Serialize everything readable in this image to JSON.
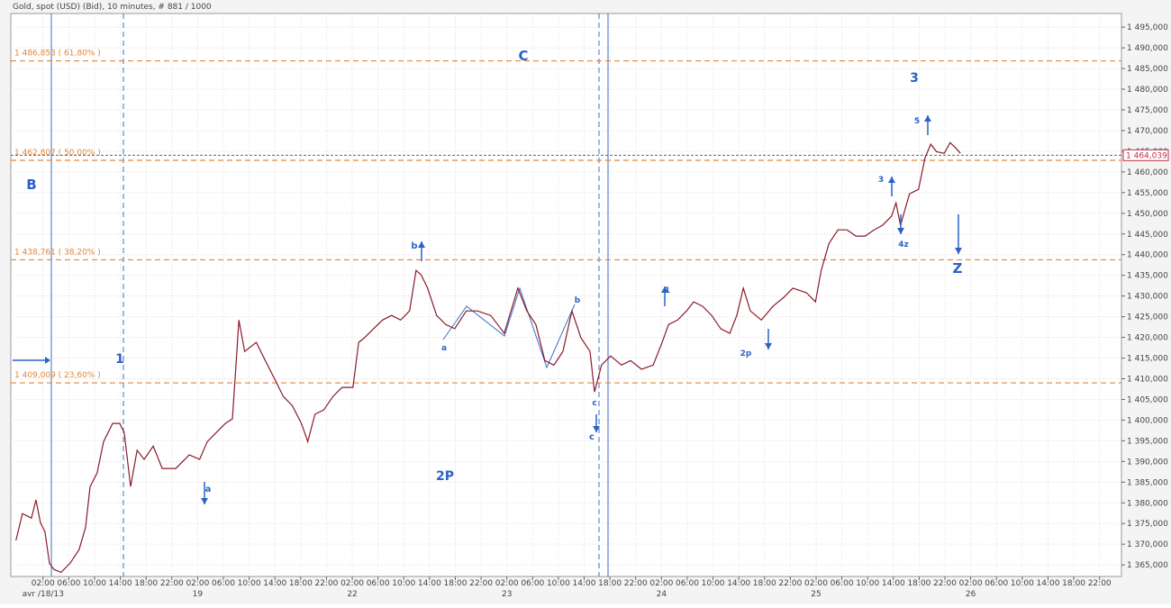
{
  "chart_data": {
    "type": "line",
    "title": "Gold, spot (USD) (Bid), 10 minutes, # 881 / 1000",
    "color": "#8b1a2b",
    "x": [
      -2.2,
      -1.2,
      0.2,
      0.9,
      1.6,
      2.3,
      3.0,
      3.7,
      4.8,
      6.2,
      7.6,
      8.6,
      9.3,
      10.4,
      11.4,
      12.8,
      13.9,
      14.6,
      15.6,
      16.6,
      17.7,
      19.1,
      20.5,
      22.6,
      24.7,
      26.3,
      27.5,
      28.9,
      30.3,
      31.4,
      32.0,
      32.4,
      33.3,
      35.1,
      36.5,
      37.9,
      39.3,
      40.7,
      42.1,
      43.1,
      44.2,
      45.6,
      47.0,
      48.4,
      50.1,
      51.0,
      51.9,
      53.3,
      54.7,
      56.1,
      57.5,
      58.9,
      59.9,
      60.7,
      61.7,
      63.1,
      64.5,
      65.9,
      67.7,
      69.4,
      71.5,
      73.6,
      75.7,
      77.1,
      78.5,
      79.9,
      81.3,
      82.7,
      84.1,
      85.5,
      86.9,
      87.6,
      88.7,
      90.1,
      91.8,
      93.2,
      94.9,
      96.7,
      98.1,
      99.1,
      100.5,
      101.9,
      103.0,
      104.4,
      105.8,
      107.2,
      108.6,
      109.7,
      110.7,
      111.8,
      113.5,
      115.3,
      117.0,
      118.4,
      120.5,
      121.9,
      122.8,
      124.0,
      125.4,
      126.8,
      128.2,
      129.6,
      131.0,
      132.3,
      133.7,
      134.4,
      135.1,
      136.5,
      137.9,
      138.9,
      139.8,
      140.7,
      141.9,
      142.8,
      143.8,
      144.4
    ],
    "values": [
      1370.9,
      1377.4,
      1376.3,
      1380.7,
      1375.2,
      1373.0,
      1365.4,
      1363.9,
      1363.2,
      1365.4,
      1368.7,
      1374.1,
      1383.9,
      1387.2,
      1394.8,
      1399.2,
      1399.2,
      1397.0,
      1383.9,
      1392.7,
      1390.5,
      1393.7,
      1388.3,
      1388.3,
      1391.6,
      1390.5,
      1394.8,
      1397.0,
      1399.2,
      1400.3,
      1414.4,
      1424.2,
      1416.6,
      1418.8,
      1414.4,
      1410.1,
      1405.7,
      1403.5,
      1399.2,
      1394.8,
      1401.4,
      1402.5,
      1405.7,
      1407.9,
      1407.9,
      1418.8,
      1419.9,
      1422.1,
      1424.2,
      1425.3,
      1424.2,
      1426.4,
      1436.2,
      1435.1,
      1431.9,
      1425.3,
      1423.1,
      1422.1,
      1426.4,
      1426.4,
      1425.3,
      1421.0,
      1431.9,
      1426.4,
      1423.1,
      1414.4,
      1413.3,
      1416.6,
      1426.4,
      1419.9,
      1416.6,
      1406.8,
      1413.3,
      1415.5,
      1413.3,
      1414.4,
      1412.3,
      1413.3,
      1418.8,
      1423.1,
      1424.2,
      1426.4,
      1428.6,
      1427.5,
      1425.3,
      1422.1,
      1421.0,
      1425.3,
      1431.9,
      1426.4,
      1424.2,
      1427.5,
      1429.7,
      1431.9,
      1430.8,
      1428.6,
      1436.2,
      1442.7,
      1446.0,
      1446.0,
      1444.5,
      1444.5,
      1446.0,
      1447.1,
      1449.3,
      1452.5,
      1447.1,
      1454.7,
      1455.8,
      1463.4,
      1466.7,
      1464.9,
      1464.5,
      1467.1,
      1465.6,
      1464.5
    ],
    "xlim": [
      -3,
      169.4
    ],
    "ylim": [
      1362.2,
      1498.3
    ],
    "grid": true,
    "xticks": [
      {
        "value": 2,
        "label": "02:00"
      },
      {
        "value": 6,
        "label": "06:00"
      },
      {
        "value": 10,
        "label": "10:00"
      },
      {
        "value": 14,
        "label": "14:00"
      },
      {
        "value": 18,
        "label": "18:00"
      },
      {
        "value": 22,
        "label": "22:00"
      },
      {
        "value": 26,
        "label": "02:00"
      },
      {
        "value": 30,
        "label": "06:00"
      },
      {
        "value": 34,
        "label": "10:00"
      },
      {
        "value": 38,
        "label": "14:00"
      },
      {
        "value": 42,
        "label": "18:00"
      },
      {
        "value": 46,
        "label": "22:00"
      },
      {
        "value": 50,
        "label": "02:00"
      },
      {
        "value": 54,
        "label": "06:00"
      },
      {
        "value": 58,
        "label": "10:00"
      },
      {
        "value": 62,
        "label": "14:00"
      },
      {
        "value": 66,
        "label": "18:00"
      },
      {
        "value": 70,
        "label": "22:00"
      },
      {
        "value": 74,
        "label": "02:00"
      },
      {
        "value": 78,
        "label": "06:00"
      },
      {
        "value": 82,
        "label": "10:00"
      },
      {
        "value": 86,
        "label": "14:00"
      },
      {
        "value": 90,
        "label": "18:00"
      },
      {
        "value": 94,
        "label": "22:00"
      },
      {
        "value": 98,
        "label": "02:00"
      },
      {
        "value": 102,
        "label": "06:00"
      },
      {
        "value": 106,
        "label": "10:00"
      },
      {
        "value": 110,
        "label": "14:00"
      },
      {
        "value": 114,
        "label": "18:00"
      },
      {
        "value": 118,
        "label": "22:00"
      },
      {
        "value": 122,
        "label": "02:00"
      },
      {
        "value": 126,
        "label": "06:00"
      },
      {
        "value": 130,
        "label": "10:00"
      },
      {
        "value": 134,
        "label": "14:00"
      },
      {
        "value": 138,
        "label": "18:00"
      },
      {
        "value": 142,
        "label": "22:00"
      },
      {
        "value": 146,
        "label": "02:00"
      },
      {
        "value": 150,
        "label": "06:00"
      },
      {
        "value": 154,
        "label": "10:00"
      },
      {
        "value": 158,
        "label": "14:00"
      },
      {
        "value": 162,
        "label": "18:00"
      },
      {
        "value": 166,
        "label": "22:00"
      }
    ],
    "day_ticks": [
      {
        "value": 2,
        "label": "avr /18/13"
      },
      {
        "value": 26,
        "label": "19"
      },
      {
        "value": 50,
        "label": "22"
      },
      {
        "value": 74,
        "label": "23"
      },
      {
        "value": 98,
        "label": "24"
      },
      {
        "value": 122,
        "label": "25"
      },
      {
        "value": 146,
        "label": "26"
      }
    ],
    "yticks": [
      {
        "value": 1365,
        "label": "1 365,000"
      },
      {
        "value": 1370,
        "label": "1 370,000"
      },
      {
        "value": 1375,
        "label": "1 375,000"
      },
      {
        "value": 1380,
        "label": "1 380,000"
      },
      {
        "value": 1385,
        "label": "1 385,000"
      },
      {
        "value": 1390,
        "label": "1 390,000"
      },
      {
        "value": 1395,
        "label": "1 395,000"
      },
      {
        "value": 1400,
        "label": "1 400,000"
      },
      {
        "value": 1405,
        "label": "1 405,000"
      },
      {
        "value": 1410,
        "label": "1 410,000"
      },
      {
        "value": 1415,
        "label": "1 415,000"
      },
      {
        "value": 1420,
        "label": "1 420,000"
      },
      {
        "value": 1425,
        "label": "1 425,000"
      },
      {
        "value": 1430,
        "label": "1 430,000"
      },
      {
        "value": 1435,
        "label": "1 435,000"
      },
      {
        "value": 1440,
        "label": "1 440,000"
      },
      {
        "value": 1445,
        "label": "1 445,000"
      },
      {
        "value": 1450,
        "label": "1 450,000"
      },
      {
        "value": 1455,
        "label": "1 455,000"
      },
      {
        "value": 1460,
        "label": "1 460,000"
      },
      {
        "value": 1465,
        "label": "1 465,000"
      },
      {
        "value": 1470,
        "label": "1 470,000"
      },
      {
        "value": 1475,
        "label": "1 475,000"
      },
      {
        "value": 1480,
        "label": "1 480,000"
      },
      {
        "value": 1485,
        "label": "1 485,000"
      },
      {
        "value": 1490,
        "label": "1 490,000"
      },
      {
        "value": 1495,
        "label": "1 495,000"
      }
    ],
    "fib_levels": [
      {
        "value": 1486.853,
        "label": "1 486,853 ( 61,80% )"
      },
      {
        "value": 1462.807,
        "label": "1 462,807 ( 50,00% )"
      },
      {
        "value": 1438.761,
        "label": "1 438,761 ( 38,20% )"
      },
      {
        "value": 1409.009,
        "label": "1 409,009 ( 23,60% )"
      }
    ],
    "fib_color": "#e0873a",
    "current_price": {
      "value": 1464.039,
      "label": "1 464,039"
    },
    "annotations": [
      "C",
      "3",
      "B",
      "Z",
      "2P",
      "1",
      "a",
      "b",
      "a",
      "b",
      "c",
      "c",
      "1",
      "2p",
      "3",
      "4z",
      "5"
    ],
    "annotation_color": "#2a62c8"
  }
}
